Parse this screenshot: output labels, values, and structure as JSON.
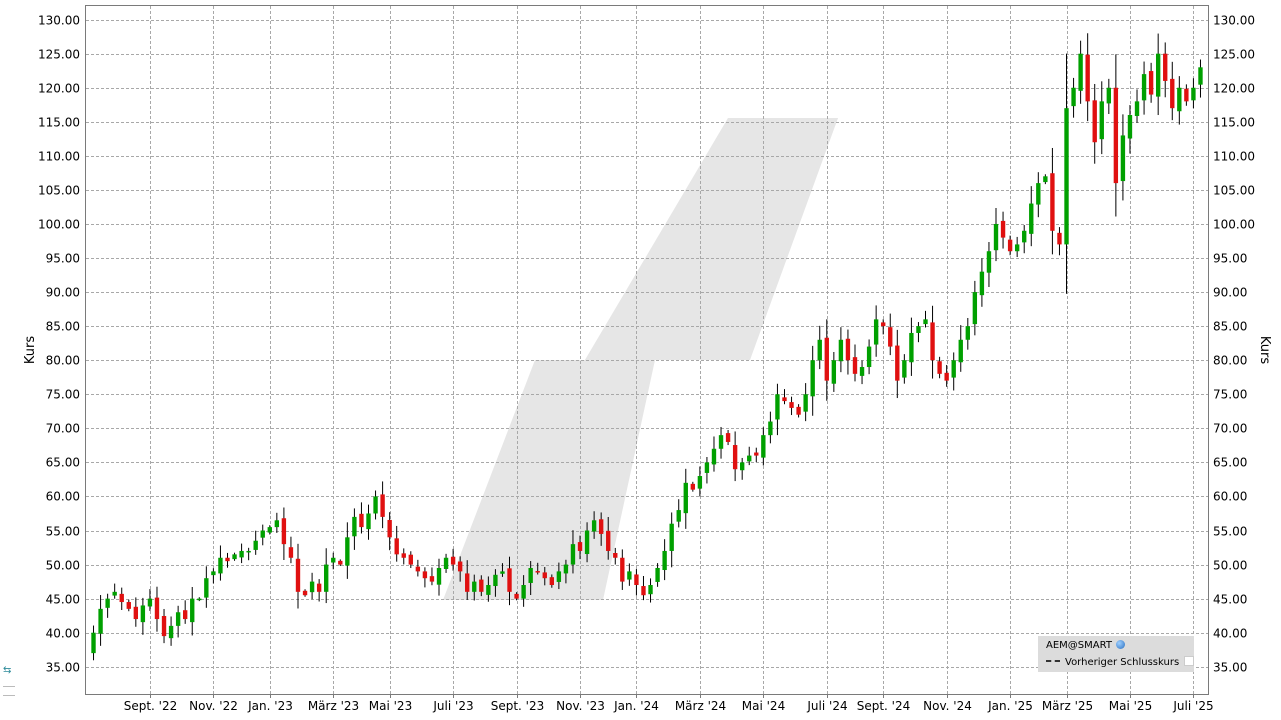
{
  "chart_data": {
    "type": "candlestick",
    "ylabel_left": "Kurs",
    "ylabel_right": "Kurs",
    "ylim": [
      31,
      132
    ],
    "yticks": [
      "35.00",
      "40.00",
      "45.00",
      "50.00",
      "55.00",
      "60.00",
      "65.00",
      "70.00",
      "75.00",
      "80.00",
      "85.00",
      "90.00",
      "95.00",
      "100.00",
      "105.00",
      "110.00",
      "115.00",
      "120.00",
      "125.00",
      "130.00"
    ],
    "x_labels": [
      "Sept. '22",
      "Nov. '22",
      "Jan. '23",
      "März '23",
      "Mai '23",
      "Juli '23",
      "Sept. '23",
      "Nov. '23",
      "Jan. '24",
      "März '24",
      "Mai '24",
      "Juli '24",
      "Sept. '24",
      "Nov. '24",
      "Jan. '25",
      "März '25",
      "Mai '25",
      "Juli '25"
    ],
    "x_label_index": [
      8,
      17,
      25,
      34,
      42,
      51,
      60,
      69,
      77,
      86,
      95,
      104,
      112,
      121,
      130,
      138,
      147,
      156
    ],
    "grid": true,
    "up_color": "#00a000",
    "down_color": "#e01010",
    "weekly_closes": [
      40,
      43.5,
      45,
      46,
      44.5,
      43.5,
      42,
      44,
      45,
      42,
      39.5,
      41,
      43,
      42,
      45,
      45,
      48,
      49,
      51,
      50.5,
      51.5,
      52,
      52,
      53.5,
      55,
      55.5,
      56.5,
      53,
      51,
      46,
      45.5,
      47.5,
      46,
      50,
      51,
      50,
      54,
      57,
      55.5,
      57.5,
      60,
      57,
      54,
      51.5,
      51,
      50,
      49,
      48,
      47.5,
      49.5,
      51,
      50,
      49,
      46,
      47.5,
      46,
      47,
      48.5,
      49,
      46,
      45,
      47,
      49.5,
      49,
      48,
      47,
      49,
      50,
      53,
      52,
      55,
      56.5,
      54.5,
      52,
      51,
      47.5,
      49,
      47,
      45.5,
      47,
      49.5,
      52,
      56,
      58,
      62,
      61,
      63,
      65,
      67,
      69,
      68,
      64,
      65,
      66,
      66,
      69,
      71,
      75,
      74,
      73,
      72,
      75,
      80,
      83,
      77,
      80,
      83,
      80,
      78,
      79,
      82,
      86,
      85,
      82,
      77,
      80,
      84,
      85,
      86,
      80,
      78,
      77,
      80,
      83,
      85,
      90,
      93,
      96,
      100,
      98,
      96,
      97,
      99,
      103,
      106,
      107,
      99,
      97,
      117,
      120,
      125,
      118,
      112,
      118,
      120,
      106,
      113,
      116,
      118,
      122,
      119,
      125,
      121,
      117,
      120,
      118,
      120,
      123
    ]
  },
  "legend": {
    "symbol": "AEM@SMART",
    "previous_close_label": "Vorheriger Schlusskurs",
    "globe_icon": "globe-icon",
    "dash_icon": "dashed-line-icon"
  }
}
